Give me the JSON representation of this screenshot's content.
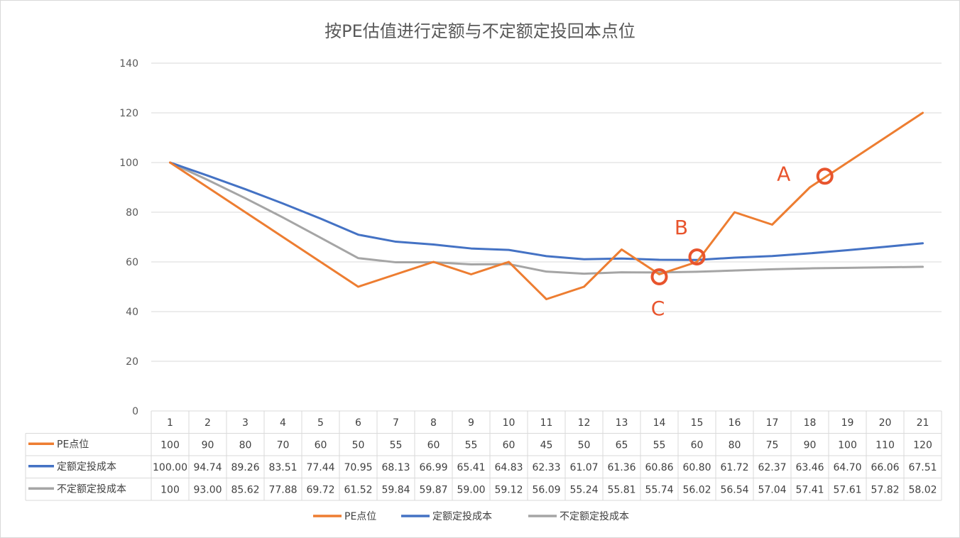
{
  "chart_data": {
    "type": "line",
    "title": "按PE估值进行定额与不定额定投回本点位",
    "categories": [
      "1",
      "2",
      "3",
      "4",
      "5",
      "6",
      "7",
      "8",
      "9",
      "10",
      "11",
      "12",
      "13",
      "14",
      "15",
      "16",
      "17",
      "18",
      "19",
      "20",
      "21"
    ],
    "series": [
      {
        "name": "PE点位",
        "color": "#ed7d31",
        "values": [
          100,
          90,
          80,
          70,
          60,
          50,
          55,
          60,
          55,
          60,
          45,
          50,
          65,
          55,
          60,
          80,
          75,
          90,
          100,
          110,
          120
        ],
        "labels": [
          "100",
          "90",
          "80",
          "70",
          "60",
          "50",
          "55",
          "60",
          "55",
          "60",
          "45",
          "50",
          "65",
          "55",
          "60",
          "80",
          "75",
          "90",
          "100",
          "110",
          "120"
        ]
      },
      {
        "name": "定额定投成本",
        "color": "#4472c4",
        "values": [
          100.0,
          94.74,
          89.26,
          83.51,
          77.44,
          70.95,
          68.13,
          66.99,
          65.41,
          64.83,
          62.33,
          61.07,
          61.36,
          60.86,
          60.8,
          61.72,
          62.37,
          63.46,
          64.7,
          66.06,
          67.51
        ],
        "labels": [
          "100.00",
          "94.74",
          "89.26",
          "83.51",
          "77.44",
          "70.95",
          "68.13",
          "66.99",
          "65.41",
          "64.83",
          "62.33",
          "61.07",
          "61.36",
          "60.86",
          "60.80",
          "61.72",
          "62.37",
          "63.46",
          "64.70",
          "66.06",
          "67.51"
        ]
      },
      {
        "name": "不定额定投成本",
        "color": "#a5a5a5",
        "values": [
          100,
          93.0,
          85.62,
          77.88,
          69.72,
          61.52,
          59.84,
          59.87,
          59.0,
          59.12,
          56.09,
          55.24,
          55.81,
          55.74,
          56.02,
          56.54,
          57.04,
          57.41,
          57.61,
          57.82,
          58.02
        ],
        "labels": [
          "100",
          "93.00",
          "85.62",
          "77.88",
          "69.72",
          "61.52",
          "59.84",
          "59.87",
          "59.00",
          "59.12",
          "56.09",
          "55.24",
          "55.81",
          "55.74",
          "56.02",
          "56.54",
          "57.04",
          "57.41",
          "57.61",
          "57.82",
          "58.02"
        ]
      }
    ],
    "ylim": [
      0,
      140
    ],
    "yticks": [
      "0",
      "20",
      "40",
      "60",
      "80",
      "100",
      "120",
      "140"
    ],
    "xlabel": "",
    "ylabel": "",
    "grid": true,
    "legend_position": "bottom",
    "data_table": true,
    "annotations": [
      {
        "label": "A",
        "x": "18.4",
        "y": 94.5
      },
      {
        "label": "B",
        "x": "15",
        "y": 62
      },
      {
        "label": "C",
        "x": "14",
        "y": 54
      }
    ],
    "annotation_color": "#e8542d"
  }
}
